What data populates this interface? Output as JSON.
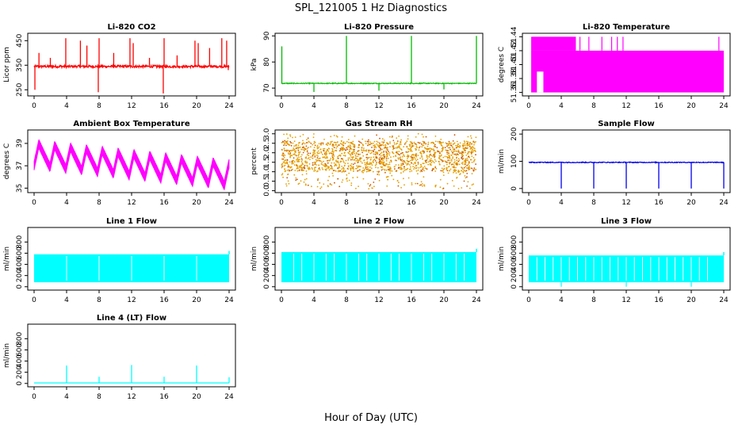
{
  "figure": {
    "title": "SPL_121005  1 Hz Diagnostics",
    "xlabel": "Hour of Day (UTC)"
  },
  "chart_data": [
    {
      "type": "line",
      "title": "Li-820 CO2",
      "ylabel": "Licor ppm",
      "color": "#ff0000",
      "xlim": [
        0,
        24
      ],
      "xticks": [
        "0",
        "4",
        "8",
        "12",
        "16",
        "20",
        "24"
      ],
      "ylim": [
        225,
        480
      ],
      "yticks": [
        250,
        350,
        450
      ],
      "ytick_labels": [
        "250",
        "350",
        "450"
      ],
      "baseline": 345,
      "noise": 10,
      "spikes": [
        {
          "x": 0.1,
          "y": 250
        },
        {
          "x": 0.6,
          "y": 400
        },
        {
          "x": 2.0,
          "y": 380
        },
        {
          "x": 3.9,
          "y": 460
        },
        {
          "x": 5.7,
          "y": 450
        },
        {
          "x": 6.5,
          "y": 430
        },
        {
          "x": 7.9,
          "y": 240
        },
        {
          "x": 8.0,
          "y": 460
        },
        {
          "x": 9.8,
          "y": 400
        },
        {
          "x": 11.8,
          "y": 460
        },
        {
          "x": 12.2,
          "y": 440
        },
        {
          "x": 14.2,
          "y": 380
        },
        {
          "x": 15.9,
          "y": 235
        },
        {
          "x": 16.0,
          "y": 460
        },
        {
          "x": 17.6,
          "y": 390
        },
        {
          "x": 19.8,
          "y": 450
        },
        {
          "x": 20.2,
          "y": 440
        },
        {
          "x": 21.6,
          "y": 420
        },
        {
          "x": 23.1,
          "y": 460
        },
        {
          "x": 23.7,
          "y": 450
        },
        {
          "x": 23.9,
          "y": 330
        }
      ]
    },
    {
      "type": "line",
      "title": "Li-820 Pressure",
      "ylabel": "kPa",
      "color": "#00bb00",
      "xlim": [
        0,
        24
      ],
      "xticks": [
        "0",
        "4",
        "8",
        "12",
        "16",
        "20",
        "24"
      ],
      "ylim": [
        67,
        91
      ],
      "yticks": [
        70,
        80,
        90
      ],
      "ytick_labels": [
        "70",
        "80",
        "90"
      ],
      "baseline": 71.8,
      "noise": 0.3,
      "spikes": [
        {
          "x": 0.05,
          "y": 86
        },
        {
          "x": 4.0,
          "y": 68.5
        },
        {
          "x": 8.0,
          "y": 90
        },
        {
          "x": 12.0,
          "y": 69
        },
        {
          "x": 16.0,
          "y": 90
        },
        {
          "x": 20.0,
          "y": 69.5
        },
        {
          "x": 24.0,
          "y": 90
        }
      ]
    },
    {
      "type": "line",
      "title": "Li-820 Temperature",
      "ylabel": "degrees C",
      "color": "#ff00ff",
      "xlim": [
        0,
        24
      ],
      "xticks": [
        "0",
        "4",
        "8",
        "12",
        "16",
        "20",
        "24"
      ],
      "ylim": [
        51.355,
        51.445
      ],
      "yticks": [
        51.36,
        51.38,
        51.4,
        51.42,
        51.44
      ],
      "ytick_labels": [
        "51.36",
        "51.38",
        "51.40",
        "51.42",
        "51.44"
      ],
      "band": [
        51.36,
        51.42
      ],
      "high": 51.44,
      "gap": [
        1.0,
        1.8
      ]
    },
    {
      "type": "line",
      "title": "Ambient Box Temperature",
      "ylabel": "degrees C",
      "color": "#ff00ff",
      "xlim": [
        0,
        24
      ],
      "xticks": [
        "0",
        "4",
        "8",
        "12",
        "16",
        "20",
        "24"
      ],
      "ylim": [
        34.6,
        40.2
      ],
      "yticks": [
        35,
        37,
        39
      ],
      "ytick_labels": [
        "35",
        "37",
        "39"
      ],
      "period": 1.95,
      "mean_start": 38.0,
      "mean_end": 36.2,
      "amplitude": 1.0,
      "thickness": 0.8
    },
    {
      "type": "scatter",
      "title": "Gas Stream RH",
      "ylabel": "percent",
      "color": "#e6a000",
      "color2": "#cc5500",
      "xlim": [
        0,
        24
      ],
      "xticks": [
        "0",
        "4",
        "8",
        "12",
        "16",
        "20",
        "24"
      ],
      "ylim": [
        -0.1,
        3.2
      ],
      "yticks": [
        0.0,
        0.5,
        1.0,
        1.5,
        2.0,
        2.5,
        3.0
      ],
      "ytick_labels": [
        "0.0",
        "0.5",
        "1.0",
        "1.5",
        "2.0",
        "2.5",
        "3.0"
      ],
      "range": [
        0.1,
        3.0
      ],
      "core": [
        1.0,
        2.6
      ]
    },
    {
      "type": "line",
      "title": "Sample Flow",
      "ylabel": "ml/min",
      "color": "#0000ee",
      "xlim": [
        0,
        24
      ],
      "xticks": [
        "0",
        "4",
        "8",
        "12",
        "16",
        "20",
        "24"
      ],
      "ylim": [
        -15,
        215
      ],
      "yticks": [
        0,
        100,
        200
      ],
      "ytick_labels": [
        "0",
        "100",
        "200"
      ],
      "baseline": 96,
      "noise": 3,
      "spikes": [
        {
          "x": 4.0,
          "y": 0
        },
        {
          "x": 8.0,
          "y": 0
        },
        {
          "x": 12.0,
          "y": 0
        },
        {
          "x": 16.0,
          "y": 0
        },
        {
          "x": 20.0,
          "y": 0
        },
        {
          "x": 24.0,
          "y": 0
        }
      ]
    },
    {
      "type": "line",
      "title": "Line 1 Flow",
      "ylabel": "ml/min",
      "color": "#00ffff",
      "xlim": [
        0,
        24
      ],
      "xticks": [
        "0",
        "4",
        "8",
        "12",
        "16",
        "20",
        "24"
      ],
      "ylim": [
        -60,
        1060
      ],
      "yticks": [
        0,
        200,
        400,
        600,
        800
      ],
      "ytick_labels": [
        "0",
        "200",
        "400",
        "600",
        "800"
      ],
      "band": [
        80,
        580
      ],
      "gaps": [
        4,
        8,
        12,
        16,
        20
      ]
    },
    {
      "type": "line",
      "title": "Line 2 Flow",
      "ylabel": "ml/min",
      "color": "#00ffff",
      "xlim": [
        0,
        24
      ],
      "xticks": [
        "0",
        "4",
        "8",
        "12",
        "16",
        "20",
        "24"
      ],
      "ylim": [
        -60,
        1060
      ],
      "yticks": [
        0,
        200,
        400,
        600,
        800
      ],
      "ytick_labels": [
        "0",
        "200",
        "400",
        "600",
        "800"
      ],
      "band": [
        80,
        620
      ],
      "gaps": [
        1.5,
        2.5,
        4,
        5.5,
        6.5,
        8,
        9.5,
        10.5,
        12,
        13.5,
        14.5,
        16,
        17.5,
        18.5,
        20,
        21.5,
        22.5
      ]
    },
    {
      "type": "line",
      "title": "Line 3 Flow",
      "ylabel": "ml/min",
      "color": "#00ffff",
      "xlim": [
        0,
        24
      ],
      "xticks": [
        "0",
        "4",
        "8",
        "12",
        "16",
        "20",
        "24"
      ],
      "ylim": [
        -60,
        1060
      ],
      "yticks": [
        0,
        200,
        400,
        600,
        800
      ],
      "ytick_labels": [
        "0",
        "200",
        "400",
        "600",
        "800"
      ],
      "band": [
        80,
        560
      ],
      "gaps": [
        1,
        2,
        3,
        4,
        5,
        6,
        7,
        8,
        9,
        10,
        11,
        12,
        13,
        14,
        15,
        16,
        17,
        18,
        19,
        20,
        21,
        22
      ],
      "dips": [
        4,
        12,
        20
      ]
    },
    {
      "type": "line",
      "title": "Line 4 (LT) Flow",
      "ylabel": "ml/min",
      "color": "#00ffff",
      "xlim": [
        0,
        24
      ],
      "xticks": [
        "0",
        "4",
        "8",
        "12",
        "16",
        "20",
        "24"
      ],
      "ylim": [
        -60,
        1060
      ],
      "yticks": [
        0,
        200,
        400,
        600,
        800
      ],
      "ytick_labels": [
        "0",
        "200",
        "400",
        "600",
        "800"
      ],
      "baseline": 10,
      "spikes": [
        {
          "x": 4.0,
          "y": 320
        },
        {
          "x": 8.0,
          "y": 120
        },
        {
          "x": 12.0,
          "y": 330
        },
        {
          "x": 16.0,
          "y": 120
        },
        {
          "x": 20.0,
          "y": 320
        },
        {
          "x": 24.0,
          "y": 110
        }
      ]
    }
  ]
}
